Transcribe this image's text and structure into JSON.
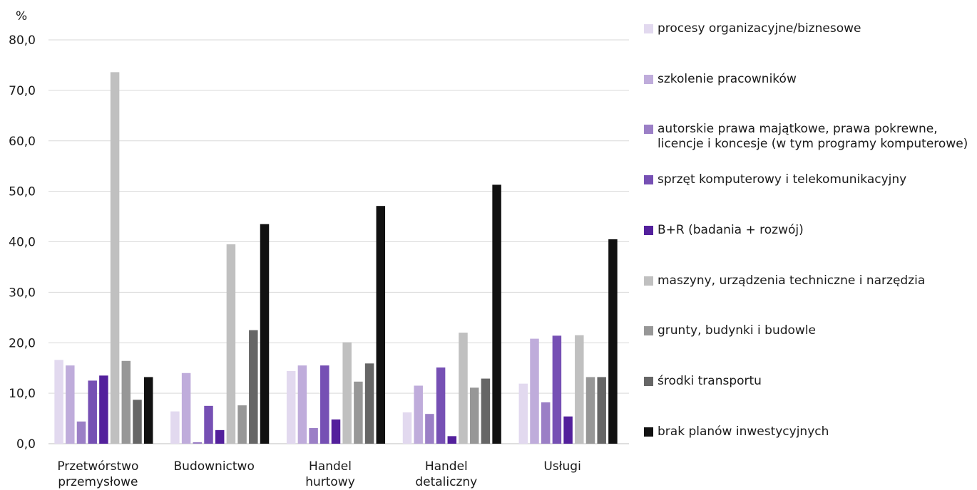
{
  "chart_data": {
    "type": "bar",
    "unit_label": "%",
    "ylim": [
      0,
      80
    ],
    "y_ticks": [
      "0,0",
      "10,0",
      "20,0",
      "30,0",
      "40,0",
      "50,0",
      "60,0",
      "70,0",
      "80,0"
    ],
    "grid": true,
    "legend_position": "right",
    "categories": [
      [
        "Przetwórstwo",
        "przemysłowe"
      ],
      [
        "Budownictwo"
      ],
      [
        "Handel",
        "hurtowy"
      ],
      [
        "Handel",
        "detaliczny"
      ],
      [
        "Usługi"
      ]
    ],
    "series": [
      {
        "name": "procesy organizacyjne/biznesowe",
        "color": "#e2d9ef",
        "values": [
          16.6,
          6.4,
          14.4,
          6.2,
          11.9
        ]
      },
      {
        "name": "szkolenie pracowników",
        "color": "#bfacdb",
        "values": [
          15.5,
          14.0,
          15.5,
          11.5,
          20.8
        ]
      },
      {
        "name": "autorskie prawa majątkowe, prawa pokrewne, licencje i koncesje (w tym programy komputerowe)",
        "color": "#9b7fc6",
        "values": [
          4.4,
          0.3,
          3.1,
          5.9,
          8.2
        ]
      },
      {
        "name": "sprzęt komputerowy i telekomunikacyjny",
        "color": "#7650b4",
        "values": [
          12.5,
          7.5,
          15.5,
          15.1,
          21.4
        ]
      },
      {
        "name": "B+R (badania + rozwój)",
        "color": "#53209c",
        "values": [
          13.5,
          2.7,
          4.8,
          1.5,
          5.4
        ]
      },
      {
        "name": "maszyny, urządzenia techniczne i narzędzia",
        "color": "#c0c0c0",
        "values": [
          73.6,
          39.5,
          20.1,
          22.0,
          21.5
        ]
      },
      {
        "name": "grunty, budynki i budowle",
        "color": "#979797",
        "values": [
          16.4,
          7.6,
          12.3,
          11.1,
          13.2
        ]
      },
      {
        "name": "środki transportu",
        "color": "#666666",
        "values": [
          8.7,
          22.5,
          15.9,
          12.9,
          13.2
        ]
      },
      {
        "name": "brak planów inwestycyjnych",
        "color": "#111111",
        "values": [
          13.2,
          43.5,
          47.1,
          51.3,
          40.5
        ]
      }
    ]
  }
}
